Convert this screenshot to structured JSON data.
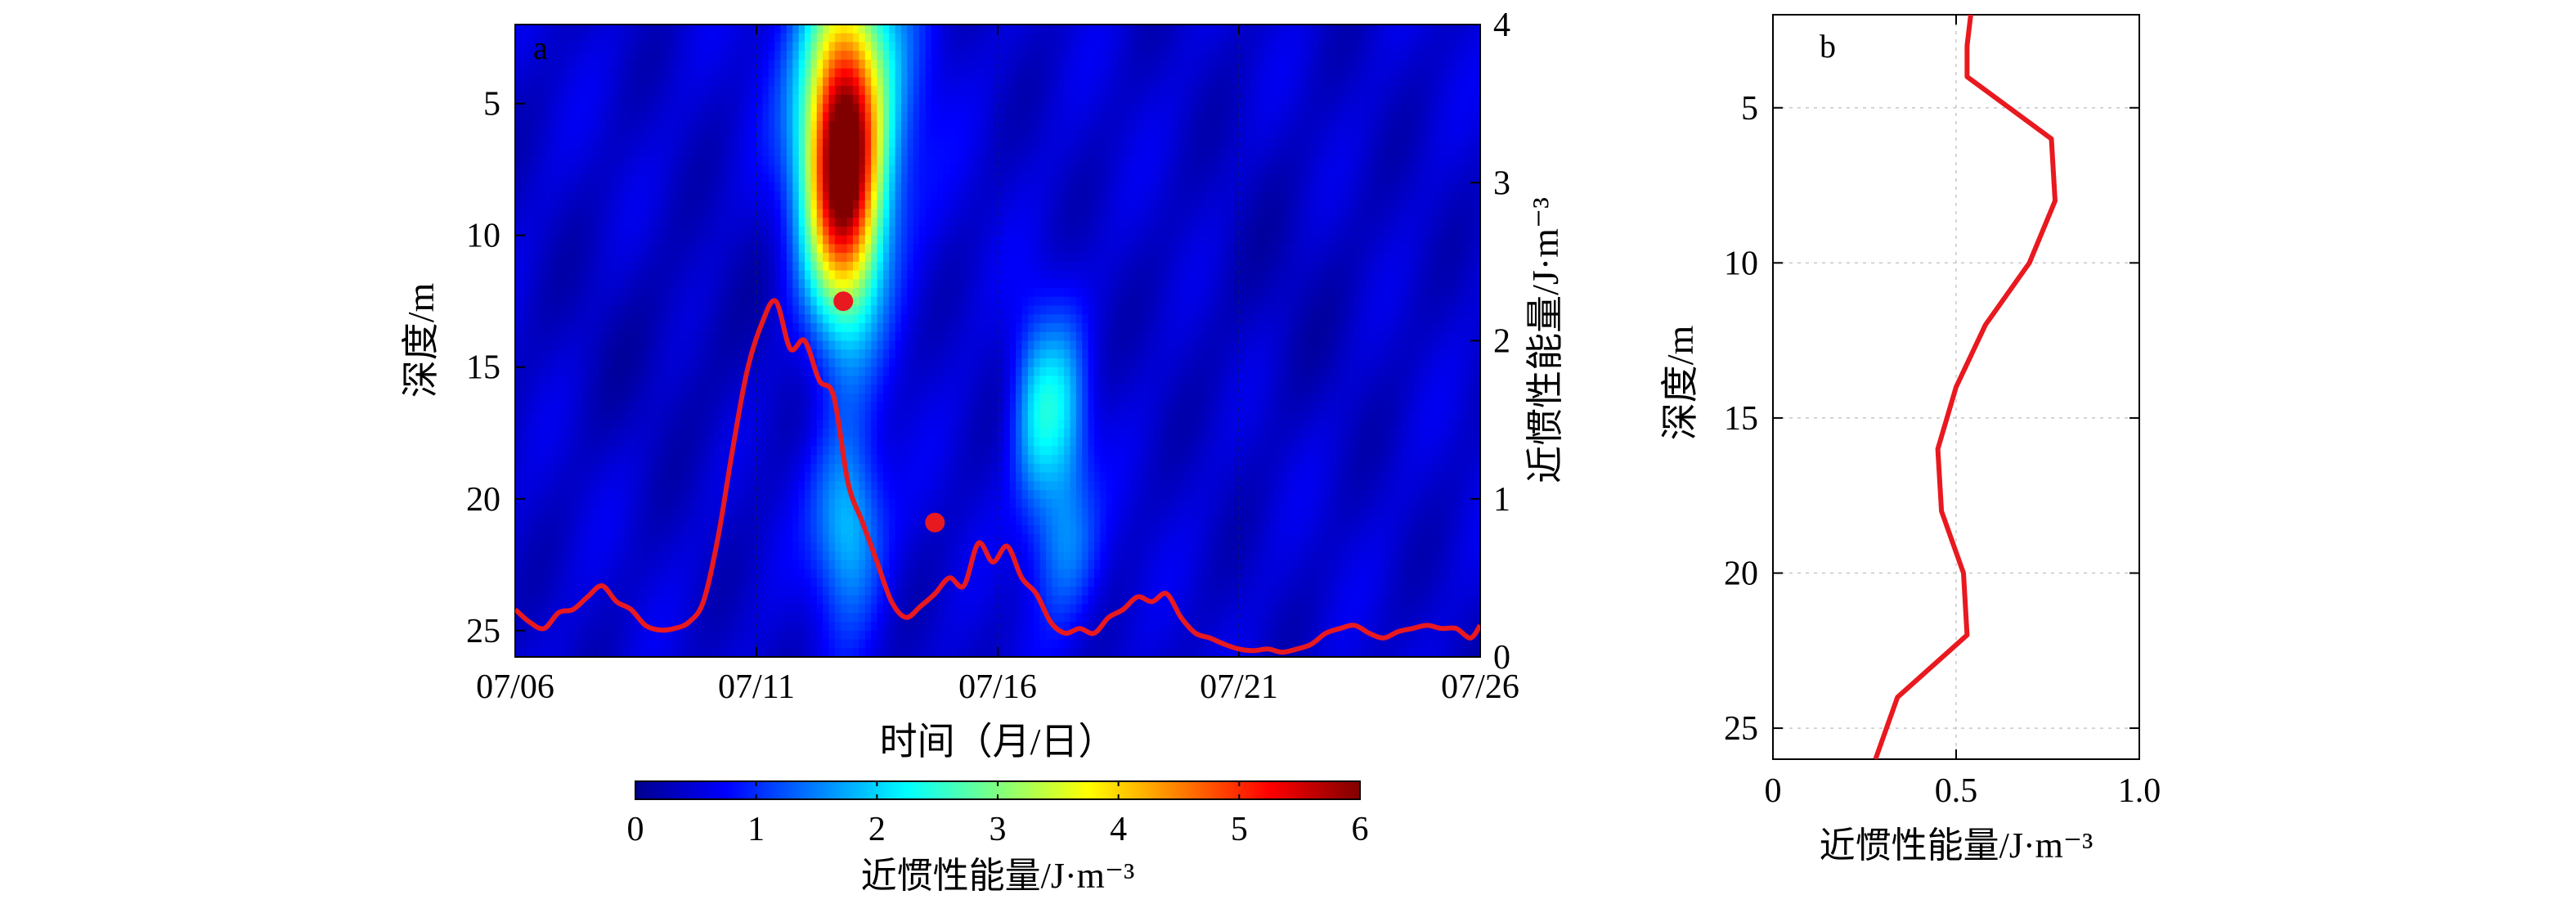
{
  "chart_data": [
    {
      "panel": "a",
      "type": "heatmap",
      "panel_label": "a",
      "xlabel": "时间（月/日）",
      "ylabel": "深度/m",
      "y2label": "近惯性能量/J·m⁻³",
      "x_start": "07/06",
      "x_end": "07/26",
      "x_ticks": [
        "07/06",
        "07/11",
        "07/16",
        "07/21",
        "07/26"
      ],
      "xlim": [
        0,
        20
      ],
      "ylim": [
        2,
        26
      ],
      "y_reversed": true,
      "y_ticks": [
        "5",
        "10",
        "15",
        "20",
        "25"
      ],
      "y2lim": [
        0,
        4
      ],
      "y2_ticks": [
        "0",
        "1",
        "2",
        "3",
        "4"
      ],
      "colorbar": {
        "label": "近惯性能量/J·m⁻³",
        "range": [
          0,
          6
        ],
        "ticks": [
          "0",
          "1",
          "2",
          "3",
          "4",
          "5",
          "6"
        ],
        "colormap": "jet"
      },
      "heatmap_hotspots": [
        {
          "day": 6.8,
          "depth": 7.5,
          "value": 5.3,
          "day_spread": 0.55,
          "depth_spread": 4.0
        },
        {
          "day": 7.0,
          "depth": 4.0,
          "value": 1.5,
          "day_spread": 0.9,
          "depth_spread": 4.5
        },
        {
          "day": 6.9,
          "depth": 21.0,
          "value": 1.5,
          "day_spread": 0.5,
          "depth_spread": 2.5
        },
        {
          "day": 10.8,
          "depth": 16.8,
          "value": 1.4,
          "day_spread": 0.35,
          "depth_spread": 2.6
        },
        {
          "day": 11.4,
          "depth": 16.8,
          "value": 1.2,
          "day_spread": 0.35,
          "depth_spread": 2.6
        },
        {
          "day": 11.4,
          "depth": 22.0,
          "value": 0.9,
          "day_spread": 0.5,
          "depth_spread": 2.0
        }
      ],
      "series": [
        {
          "color": "#e8191f",
          "axis": "right",
          "x": [
            0,
            0.3,
            0.6,
            0.9,
            1.2,
            1.5,
            1.8,
            2.1,
            2.4,
            2.7,
            3.0,
            3.3,
            3.6,
            3.9,
            4.2,
            4.5,
            4.8,
            5.1,
            5.4,
            5.7,
            6.0,
            6.3,
            6.6,
            6.9,
            7.2,
            7.5,
            7.8,
            8.1,
            8.4,
            8.7,
            9.0,
            9.3,
            9.6,
            9.9,
            10.2,
            10.5,
            10.8,
            11.1,
            11.4,
            11.7,
            12.0,
            12.3,
            12.6,
            12.9,
            13.2,
            13.5,
            13.8,
            14.1,
            14.4,
            14.7,
            15.0,
            15.3,
            15.6,
            15.9,
            16.2,
            16.5,
            16.8,
            17.1,
            17.4,
            17.7,
            18.0,
            18.3,
            18.6,
            18.9,
            19.2,
            19.5,
            19.8,
            20.0
          ],
          "values": [
            0.3,
            0.22,
            0.18,
            0.28,
            0.3,
            0.38,
            0.45,
            0.35,
            0.3,
            0.2,
            0.17,
            0.18,
            0.22,
            0.35,
            0.75,
            1.3,
            1.8,
            2.1,
            2.25,
            1.95,
            2.0,
            1.75,
            1.65,
            1.1,
            0.85,
            0.6,
            0.35,
            0.25,
            0.32,
            0.4,
            0.5,
            0.45,
            0.72,
            0.6,
            0.7,
            0.5,
            0.4,
            0.22,
            0.15,
            0.18,
            0.15,
            0.25,
            0.3,
            0.38,
            0.35,
            0.4,
            0.25,
            0.15,
            0.12,
            0.08,
            0.05,
            0.04,
            0.05,
            0.03,
            0.05,
            0.08,
            0.15,
            0.18,
            0.2,
            0.15,
            0.12,
            0.16,
            0.18,
            0.2,
            0.18,
            0.18,
            0.12,
            0.2
          ]
        }
      ],
      "markers": [
        {
          "x": 6.8,
          "value": 2.25
        },
        {
          "x": 8.7,
          "value": 0.85
        }
      ]
    },
    {
      "panel": "b",
      "type": "line",
      "panel_label": "b",
      "xlabel": "近惯性能量/J·m⁻³",
      "ylabel": "深度/m",
      "xlim": [
        0,
        1.0
      ],
      "x_ticks": [
        "0",
        "0.5",
        "1.0"
      ],
      "ylim": [
        2,
        26
      ],
      "y_reversed": true,
      "y_ticks": [
        "5",
        "10",
        "15",
        "20",
        "25"
      ],
      "grid": true,
      "series": [
        {
          "color": "#e8191f",
          "energy": [
            0.54,
            0.53,
            0.53,
            0.76,
            0.77,
            0.7,
            0.58,
            0.5,
            0.45,
            0.46,
            0.52,
            0.53,
            0.34,
            0.28
          ],
          "depth": [
            2.0,
            3.0,
            4.0,
            6.0,
            8.0,
            10.0,
            12.0,
            14.0,
            16.0,
            18.0,
            20.0,
            22.0,
            24.0,
            26.0
          ]
        }
      ]
    }
  ]
}
